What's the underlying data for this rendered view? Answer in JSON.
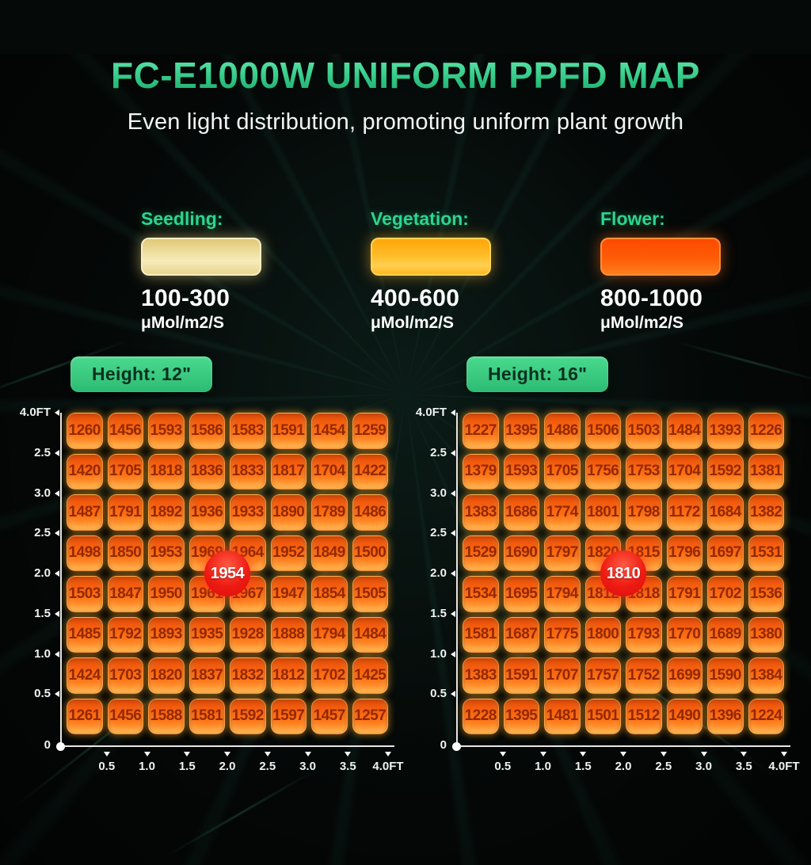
{
  "title": "FC-E1000W UNIFORM PPFD MAP",
  "subtitle": "Even light distribution, promoting uniform plant growth",
  "legend": {
    "items": [
      {
        "name": "seedling",
        "label": "Seedling:",
        "range": "100-300",
        "unit": "μMol/m2/S",
        "swatch_color": "#f0e2a0"
      },
      {
        "name": "vegetation",
        "label": "Vegetation:",
        "range": "400-600",
        "unit": "μMol/m2/S",
        "swatch_color": "#ffb81c"
      },
      {
        "name": "flower",
        "label": "Flower:",
        "range": "800-1000",
        "unit": "μMol/m2/S",
        "swatch_color": "#ff5505"
      }
    ]
  },
  "accent_colors": {
    "title_green": "#3bd68c",
    "badge_green": "#3ecb82",
    "cell_orange": "#fb6b10",
    "cell_text": "#932900",
    "center_badge_red": "#e41212"
  },
  "chart_data": [
    {
      "type": "heatmap",
      "title": "Height: 12\"",
      "unit": "μMol/m2/S",
      "x_ticks": [
        "0.5",
        "1.0",
        "1.5",
        "2.0",
        "2.5",
        "3.0",
        "3.5",
        "4.0FT"
      ],
      "y_ticks_top_to_bottom": [
        "4.0FT",
        "2.5",
        "3.0",
        "2.5",
        "2.0",
        "1.5",
        "1.0",
        "0.5"
      ],
      "origin_label": "0",
      "center_badge_value": "1954",
      "values": [
        [
          1260,
          1456,
          1593,
          1586,
          1583,
          1591,
          1454,
          1259
        ],
        [
          1420,
          1705,
          1818,
          1836,
          1833,
          1817,
          1704,
          1422
        ],
        [
          1487,
          1791,
          1892,
          1936,
          1933,
          1890,
          1789,
          1486
        ],
        [
          1498,
          1850,
          1953,
          1969,
          1964,
          1952,
          1849,
          1500
        ],
        [
          1503,
          1847,
          1950,
          1961,
          1967,
          1947,
          1854,
          1505
        ],
        [
          1485,
          1792,
          1893,
          1935,
          1928,
          1888,
          1794,
          1484
        ],
        [
          1424,
          1703,
          1820,
          1837,
          1832,
          1812,
          1702,
          1425
        ],
        [
          1261,
          1456,
          1588,
          1581,
          1592,
          1597,
          1457,
          1257
        ]
      ]
    },
    {
      "type": "heatmap",
      "title": "Height: 16\"",
      "unit": "μMol/m2/S",
      "x_ticks": [
        "0.5",
        "1.0",
        "1.5",
        "2.0",
        "2.5",
        "3.0",
        "3.5",
        "4.0FT"
      ],
      "y_ticks_top_to_bottom": [
        "4.0FT",
        "2.5",
        "3.0",
        "2.5",
        "2.0",
        "1.5",
        "1.0",
        "0.5"
      ],
      "origin_label": "0",
      "center_badge_value": "1810",
      "values": [
        [
          1227,
          1395,
          1486,
          1506,
          1503,
          1484,
          1393,
          1226
        ],
        [
          1379,
          1593,
          1705,
          1756,
          1753,
          1704,
          1592,
          1381
        ],
        [
          1383,
          1686,
          1774,
          1801,
          1798,
          1172,
          1684,
          1382
        ],
        [
          1529,
          1690,
          1797,
          1820,
          1815,
          1796,
          1697,
          1531
        ],
        [
          1534,
          1695,
          1794,
          1812,
          1818,
          1791,
          1702,
          1536
        ],
        [
          1581,
          1687,
          1775,
          1800,
          1793,
          1770,
          1689,
          1380
        ],
        [
          1383,
          1591,
          1707,
          1757,
          1752,
          1699,
          1590,
          1384
        ],
        [
          1228,
          1395,
          1481,
          1501,
          1512,
          1490,
          1396,
          1224
        ]
      ]
    }
  ]
}
